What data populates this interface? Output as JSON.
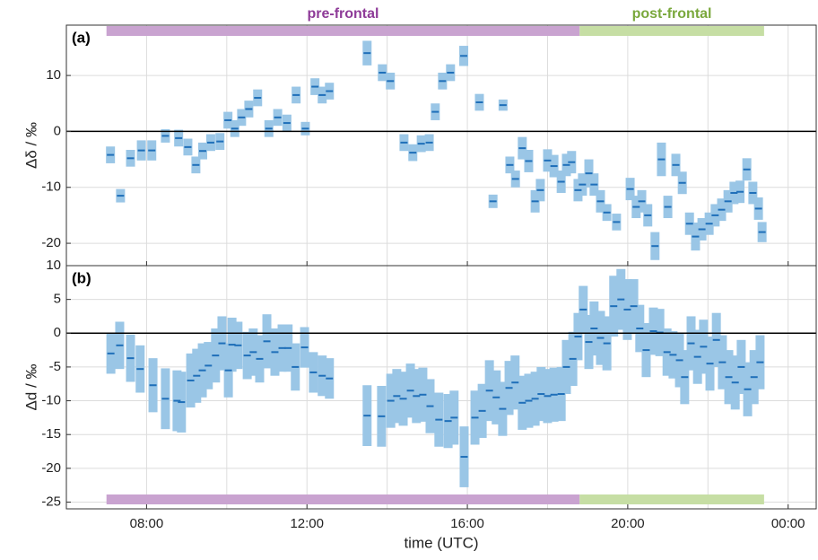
{
  "chart_data": [
    {
      "type": "errorbar",
      "panel_label": "(a)",
      "ylabel": "Δδ / ‰",
      "x": [
        7.1,
        7.35,
        7.6,
        7.87,
        8.13,
        8.47,
        8.8,
        9.03,
        9.23,
        9.4,
        9.6,
        9.83,
        10.03,
        10.2,
        10.37,
        10.55,
        10.77,
        11.05,
        11.27,
        11.5,
        11.73,
        11.96,
        12.2,
        12.38,
        12.56,
        13.5,
        13.88,
        14.08,
        14.42,
        14.64,
        14.85,
        15.05,
        15.2,
        15.38,
        15.58,
        15.91,
        16.3,
        16.64,
        16.89,
        17.06,
        17.2,
        17.37,
        17.53,
        17.69,
        17.82,
        18.0,
        18.16,
        18.34,
        18.47,
        18.6,
        18.76,
        18.87,
        19.03,
        19.16,
        19.32,
        19.48,
        19.72,
        20.06,
        20.21,
        20.35,
        20.5,
        20.68,
        20.84,
        21.0,
        21.2,
        21.36,
        21.54,
        21.69,
        21.85,
        22.03,
        22.18,
        22.34,
        22.5,
        22.65,
        22.8,
        22.97,
        23.12,
        23.26,
        23.35
      ],
      "values": [
        -4.2,
        -11.5,
        -4.8,
        -3.4,
        -3.4,
        -0.8,
        -1.2,
        -2.8,
        -6,
        -3.5,
        -2,
        -1.8,
        2,
        0.5,
        2.5,
        4,
        6,
        0.5,
        2.5,
        1.5,
        6.5,
        0.5,
        8,
        6.5,
        7.2,
        14,
        10.5,
        9,
        -2,
        -3.8,
        -2.2,
        -2,
        3.5,
        9,
        10.5,
        13.5,
        5.2,
        -12.5,
        4.7,
        -6,
        -8.5,
        -3,
        -5.3,
        -12.5,
        -10.5,
        -5.2,
        -6.2,
        -9,
        -6,
        -5.5,
        -10.5,
        -9.5,
        -7.5,
        -9.5,
        -12.5,
        -14.5,
        -16.2,
        -10.3,
        -13.5,
        -12.5,
        -15,
        -20.5,
        -5,
        -13.5,
        -6,
        -9.2,
        -16.5,
        -18.8,
        -17.5,
        -16.5,
        -15,
        -14,
        -12.5,
        -11,
        -10.8,
        -6.8,
        -11,
        -13.8,
        -18
      ],
      "errors": [
        1.5,
        1.2,
        1.5,
        1.8,
        1.8,
        1.2,
        1.5,
        1.5,
        1.5,
        1.5,
        1.5,
        1.5,
        1.5,
        1.5,
        1.5,
        1.5,
        1.5,
        1.5,
        1.5,
        1.5,
        1.5,
        1.2,
        1.5,
        1.5,
        1.5,
        2.2,
        1.5,
        1.5,
        1.5,
        1.5,
        1.5,
        1.5,
        1.5,
        1.5,
        1.5,
        1.8,
        1.5,
        1.2,
        1,
        1.5,
        1.5,
        2,
        2,
        2,
        2,
        2,
        2,
        2,
        2,
        2,
        2,
        2,
        2.5,
        2,
        2,
        1.5,
        1.5,
        2,
        2,
        2,
        2,
        2.5,
        3,
        2,
        2,
        2,
        2,
        2.5,
        2,
        2,
        2,
        2,
        2,
        2,
        2,
        2,
        2,
        2,
        1.8
      ],
      "color": "#1f6fb9",
      "error_color": "#9ac6e6",
      "xlim": [
        6,
        24.7
      ],
      "xticks": [
        8,
        12,
        16,
        20,
        24
      ],
      "xminorticks": [
        10,
        14,
        18,
        22
      ],
      "ylim": [
        -24,
        19
      ],
      "yticks": [
        -20,
        -10,
        0,
        10
      ],
      "grid": true,
      "zero_line": true,
      "periods": [
        {
          "label": "pre-frontal",
          "start": 7.0,
          "end": 18.8,
          "color": "#c9a3d0",
          "label_color": "#8e3b98"
        },
        {
          "label": "post-frontal",
          "start": 18.8,
          "end": 23.4,
          "color": "#c6dea4",
          "label_color": "#7aa83c"
        }
      ],
      "period_position": "top"
    },
    {
      "type": "errorbar",
      "panel_label": "(b)",
      "ylabel": "Δd / ‰",
      "xlabel": "time (UTC)",
      "x": [
        7.11,
        7.33,
        7.6,
        7.84,
        8.16,
        8.47,
        8.76,
        8.87,
        9.1,
        9.25,
        9.39,
        9.54,
        9.72,
        9.88,
        10.04,
        10.13,
        10.28,
        10.51,
        10.66,
        10.82,
        11.0,
        11.2,
        11.38,
        11.53,
        11.71,
        11.94,
        12.16,
        12.38,
        12.56,
        13.5,
        13.86,
        14.09,
        14.24,
        14.4,
        14.58,
        14.73,
        14.89,
        15.07,
        15.29,
        15.52,
        15.67,
        15.92,
        16.19,
        16.37,
        16.55,
        16.72,
        16.88,
        17.04,
        17.19,
        17.37,
        17.53,
        17.69,
        17.84,
        18.0,
        18.16,
        18.34,
        18.47,
        18.63,
        18.76,
        18.89,
        19.03,
        19.16,
        19.32,
        19.48,
        19.65,
        19.83,
        19.99,
        20.15,
        20.3,
        20.46,
        20.64,
        20.8,
        20.98,
        21.13,
        21.29,
        21.42,
        21.58,
        21.74,
        21.89,
        22.05,
        22.21,
        22.36,
        22.52,
        22.68,
        22.83,
        22.99,
        23.15,
        23.3
      ],
      "values": [
        -3,
        -1.8,
        -3.7,
        -5.3,
        -7.7,
        -9.7,
        -10,
        -10.2,
        -7,
        -6.3,
        -5.5,
        -4.8,
        -3.3,
        -1.5,
        -5.5,
        -1.7,
        -1.8,
        -3.3,
        -2.8,
        -3.8,
        -1.2,
        -2.8,
        -2.2,
        -2.2,
        -5,
        -2.1,
        -5.8,
        -6.3,
        -6.7,
        -12.2,
        -12.3,
        -10,
        -9.3,
        -9.7,
        -8.5,
        -9.3,
        -9.1,
        -10.8,
        -12.8,
        -13,
        -12.5,
        -18.3,
        -12.5,
        -11.5,
        -8.5,
        -9.5,
        -11.2,
        -8.1,
        -7.3,
        -10.3,
        -10,
        -9.7,
        -9,
        -9.3,
        -9.1,
        -9,
        -5,
        -3.8,
        -0.5,
        3.5,
        -1.3,
        0.7,
        -0.7,
        -1.5,
        4,
        5,
        3.5,
        4,
        0.7,
        -2.5,
        0.3,
        0.1,
        -2.8,
        -3.2,
        -4,
        -6.5,
        -1.5,
        -3.5,
        -2,
        -4.5,
        -1,
        -4.3,
        -6.5,
        -7.3,
        -5,
        -8.3,
        -6.5,
        -4.3
      ],
      "errors": [
        3,
        3.5,
        3.5,
        3.5,
        4,
        4.5,
        4.5,
        4.5,
        4,
        4,
        4,
        3.5,
        4,
        4,
        4,
        4,
        3.5,
        3.5,
        3.5,
        3.5,
        4,
        3.5,
        3.5,
        3.5,
        3.5,
        3,
        3,
        3,
        3,
        4.5,
        4.5,
        4,
        4,
        4,
        4,
        4,
        4,
        4,
        4,
        4,
        4,
        4.5,
        4,
        4,
        4.5,
        4,
        4,
        4,
        4,
        4,
        4,
        4,
        4,
        4,
        4,
        4,
        4,
        4,
        3.5,
        3.5,
        4,
        4,
        4,
        4,
        4.5,
        4.5,
        4.5,
        4,
        3.5,
        4,
        3.5,
        3.5,
        3.5,
        3.5,
        4,
        4,
        4,
        4,
        4,
        4,
        4,
        4,
        4,
        4,
        4,
        4,
        4,
        4
      ],
      "color": "#1f6fb9",
      "error_color": "#9ac6e6",
      "xlim": [
        6,
        24.7
      ],
      "xticks": [
        {
          "value": 8,
          "label": "08:00"
        },
        {
          "value": 12,
          "label": "12:00"
        },
        {
          "value": 16,
          "label": "16:00"
        },
        {
          "value": 20,
          "label": "20:00"
        },
        {
          "value": 24,
          "label": "00:00"
        }
      ],
      "xminorticks": [
        10,
        14,
        18,
        22
      ],
      "ylim": [
        -26,
        10
      ],
      "yticks": [
        -25,
        -20,
        -15,
        -10,
        -5,
        0,
        5,
        10
      ],
      "grid": true,
      "zero_line": true,
      "period_position": "bottom"
    }
  ]
}
